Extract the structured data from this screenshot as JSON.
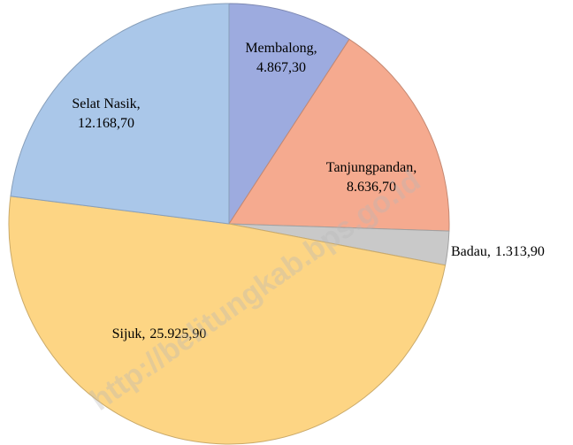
{
  "chart_data": {
    "type": "pie",
    "categories": [
      "Membalong",
      "Tanjungpandan",
      "Badau",
      "Sijuk",
      "Selat Nasik"
    ],
    "values": [
      4867.3,
      8636.7,
      1313.9,
      25925.9,
      12168.7
    ],
    "value_labels": [
      "4.867,30",
      "8.636,70",
      "1.313,90",
      "25.925,90",
      "12.168,70"
    ],
    "separator": ",",
    "colors": [
      "#9dabdf",
      "#f5aa8f",
      "#c9c9c9",
      "#fdd584",
      "#aac7e9"
    ],
    "watermark": "http://belitungkab.bps.go.id"
  }
}
